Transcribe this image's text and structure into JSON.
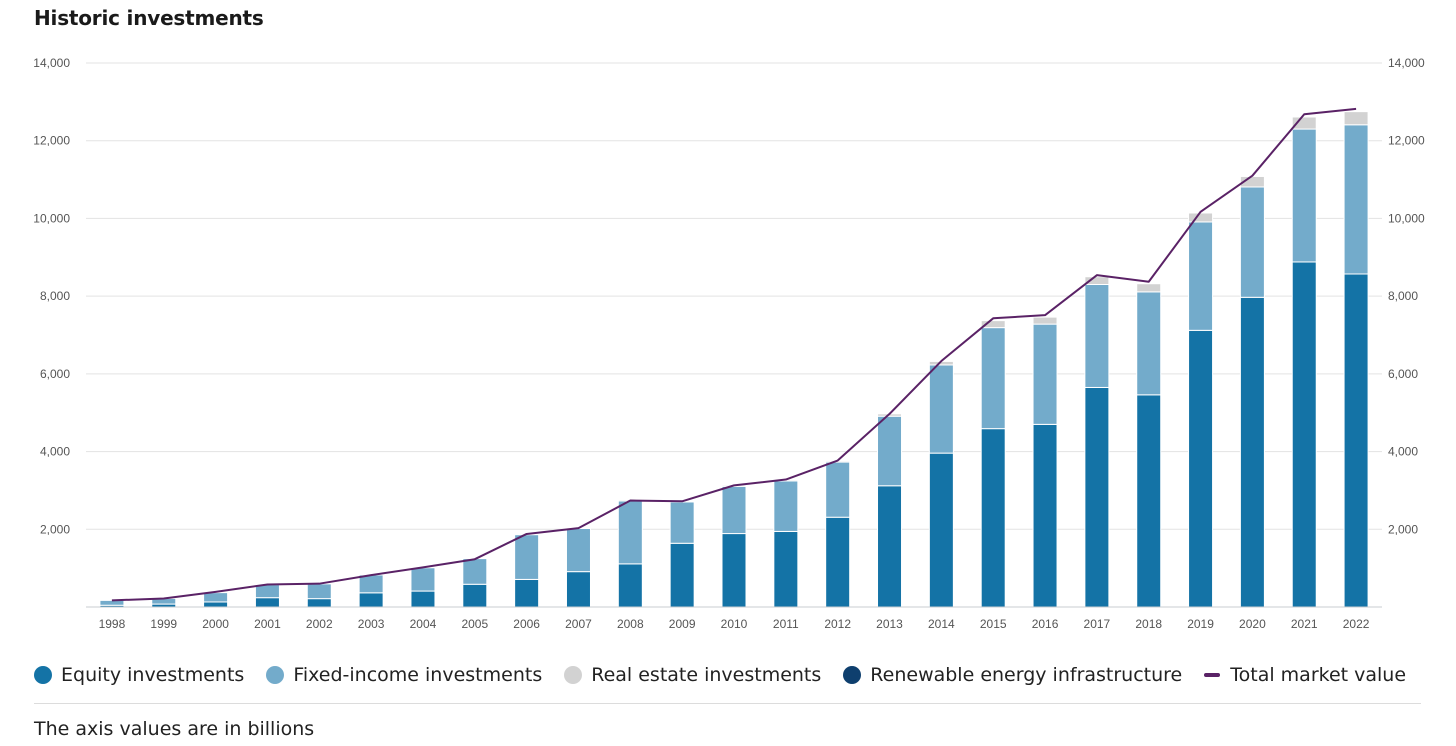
{
  "chart_data": {
    "type": "bar",
    "title": "Historic investments",
    "note": "The axis values are in billions",
    "categories": [
      "1998",
      "1999",
      "2000",
      "2001",
      "2002",
      "2003",
      "2004",
      "2005",
      "2006",
      "2007",
      "2008",
      "2009",
      "2010",
      "2011",
      "2012",
      "2013",
      "2014",
      "2015",
      "2016",
      "2017",
      "2018",
      "2019",
      "2020",
      "2021",
      "2022"
    ],
    "series": [
      {
        "name": "Equity investments",
        "color": "#1473a6",
        "values": [
          45,
          75,
          130,
          240,
          215,
          365,
          410,
          585,
          710,
          910,
          1110,
          1640,
          1890,
          1945,
          2310,
          3120,
          3960,
          4590,
          4700,
          5650,
          5460,
          7120,
          7970,
          8880,
          8570
        ]
      },
      {
        "name": "Fixed-income investments",
        "color": "#73abcb",
        "values": [
          125,
          145,
          240,
          335,
          380,
          460,
          600,
          660,
          1150,
          1110,
          1620,
          1065,
          1215,
          1300,
          1420,
          1790,
          2270,
          2600,
          2580,
          2650,
          2650,
          2790,
          2840,
          3420,
          3840
        ]
      },
      {
        "name": "Real estate investments",
        "color": "#d2d2d2",
        "values": [
          0,
          0,
          0,
          0,
          0,
          0,
          0,
          0,
          0,
          0,
          30,
          25,
          30,
          30,
          30,
          60,
          90,
          180,
          180,
          200,
          210,
          230,
          270,
          310,
          340
        ]
      },
      {
        "name": "Renewable energy infrastructure",
        "color": "#0e3f6e",
        "values": [
          0,
          0,
          0,
          0,
          0,
          0,
          0,
          0,
          0,
          0,
          0,
          0,
          0,
          0,
          0,
          0,
          0,
          0,
          0,
          0,
          0,
          0,
          0,
          0,
          15
        ]
      }
    ],
    "line": {
      "name": "Total market value",
      "color": "#5a2266",
      "type": "line",
      "values": [
        170,
        220,
        390,
        580,
        600,
        820,
        1020,
        1230,
        1880,
        2030,
        2740,
        2720,
        3130,
        3280,
        3770,
        4970,
        6330,
        7430,
        7510,
        8540,
        8370,
        10170,
        11100,
        12680,
        12820
      ]
    },
    "ylim": [
      0,
      14000
    ],
    "yticks": [
      "2,000",
      "4,000",
      "6,000",
      "8,000",
      "10,000",
      "12,000",
      "14,000"
    ],
    "ytick_values": [
      2000,
      4000,
      6000,
      8000,
      10000,
      12000,
      14000
    ],
    "grid": true,
    "legend": "bottom",
    "xlabel": "",
    "ylabel": ""
  }
}
